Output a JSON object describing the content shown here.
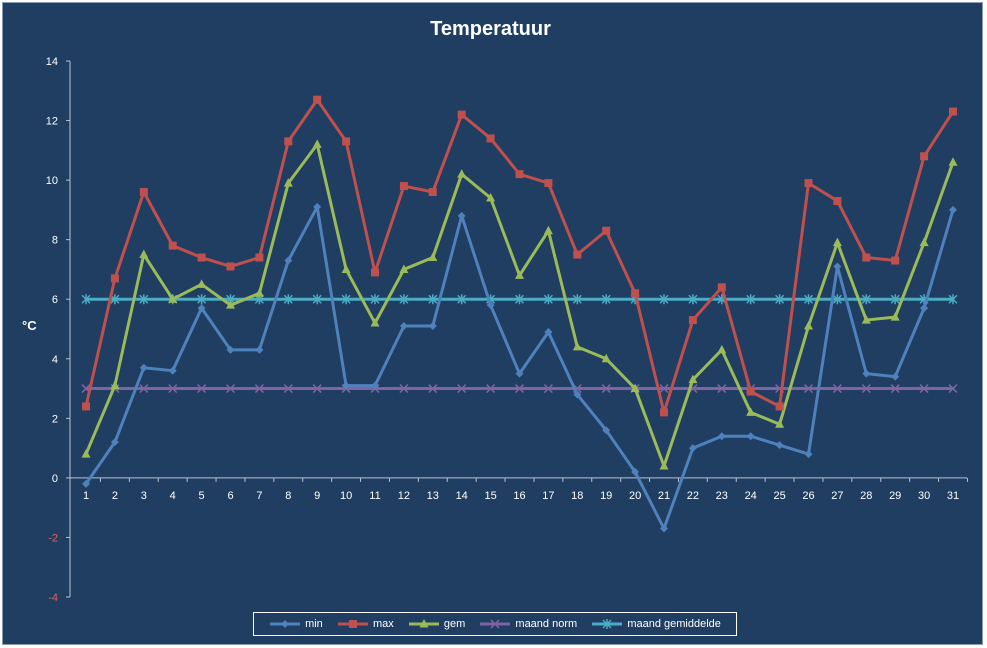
{
  "chart_data": {
    "type": "line",
    "title": "Temperatuur",
    "xlabel": "",
    "ylabel": "°C",
    "x": [
      1,
      2,
      3,
      4,
      5,
      6,
      7,
      8,
      9,
      10,
      11,
      12,
      13,
      14,
      15,
      16,
      17,
      18,
      19,
      20,
      21,
      22,
      23,
      24,
      25,
      26,
      27,
      28,
      29,
      30,
      31
    ],
    "ylim": [
      -4,
      14
    ],
    "yticks": [
      -4,
      -2,
      0,
      2,
      4,
      6,
      8,
      10,
      12,
      14
    ],
    "grid": false,
    "legend_position": "bottom",
    "series": [
      {
        "name": "min",
        "color": "#4f81bd",
        "marker": "diamond",
        "values": [
          -0.2,
          1.2,
          3.7,
          3.6,
          5.7,
          4.3,
          4.3,
          7.3,
          9.1,
          3.1,
          3.1,
          5.1,
          5.1,
          8.8,
          5.8,
          3.5,
          4.9,
          2.8,
          1.6,
          0.2,
          -1.7,
          1.0,
          1.4,
          1.4,
          1.1,
          0.8,
          7.1,
          3.5,
          3.4,
          5.7,
          9.0
        ]
      },
      {
        "name": "max",
        "color": "#c0504d",
        "marker": "square",
        "values": [
          2.4,
          6.7,
          9.6,
          7.8,
          7.4,
          7.1,
          7.4,
          11.3,
          12.7,
          11.3,
          6.9,
          9.8,
          9.6,
          12.2,
          11.4,
          10.2,
          9.9,
          7.5,
          8.3,
          6.2,
          2.2,
          5.3,
          6.4,
          2.9,
          2.4,
          9.9,
          9.3,
          7.4,
          7.3,
          10.8,
          12.3
        ]
      },
      {
        "name": "gem",
        "color": "#9bbb59",
        "marker": "triangle",
        "values": [
          0.8,
          3.1,
          7.5,
          6.0,
          6.5,
          5.8,
          6.2,
          9.9,
          11.2,
          7.0,
          5.2,
          7.0,
          7.4,
          10.2,
          9.4,
          6.8,
          8.3,
          4.4,
          4.0,
          3.0,
          0.4,
          3.3,
          4.3,
          2.2,
          1.8,
          5.1,
          7.9,
          5.3,
          5.4,
          7.9,
          10.6
        ]
      },
      {
        "name": "maand norm",
        "color": "#8064a2",
        "marker": "x",
        "values": [
          3,
          3,
          3,
          3,
          3,
          3,
          3,
          3,
          3,
          3,
          3,
          3,
          3,
          3,
          3,
          3,
          3,
          3,
          3,
          3,
          3,
          3,
          3,
          3,
          3,
          3,
          3,
          3,
          3,
          3,
          3
        ]
      },
      {
        "name": "maand gemiddelde",
        "color": "#4bacc6",
        "marker": "star",
        "values": [
          6,
          6,
          6,
          6,
          6,
          6,
          6,
          6,
          6,
          6,
          6,
          6,
          6,
          6,
          6,
          6,
          6,
          6,
          6,
          6,
          6,
          6,
          6,
          6,
          6,
          6,
          6,
          6,
          6,
          6,
          6
        ]
      }
    ]
  }
}
